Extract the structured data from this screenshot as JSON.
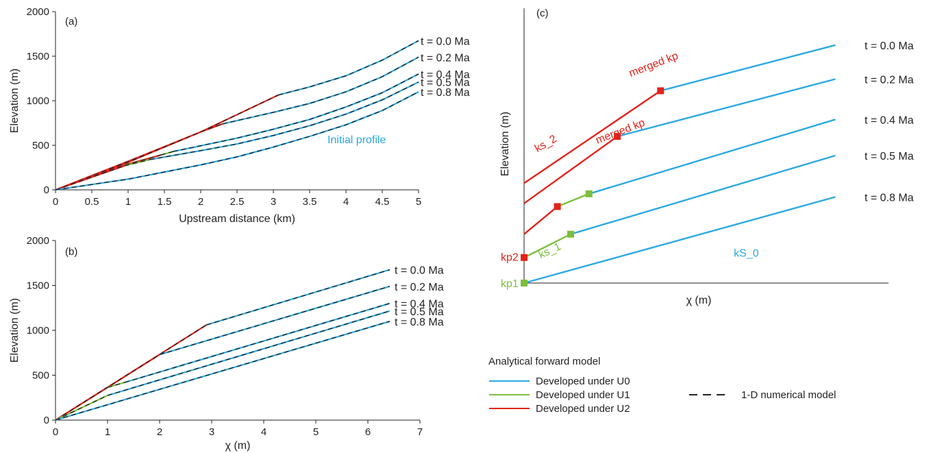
{
  "colors": {
    "u0": "#2ba9e1",
    "u1": "#7cbf3d",
    "u2": "#e2231a",
    "numerical": "#231f20",
    "axis": "#231f20"
  },
  "chart_data": [
    {
      "panel": "(a)",
      "type": "line",
      "xlabel": "Upstream distance (km)",
      "ylabel": "Elevation (m)",
      "xlim": [
        0,
        5
      ],
      "ylim": [
        0,
        2000
      ],
      "xticks": [
        "0",
        "0.5",
        "1",
        "1.5",
        "2",
        "2.5",
        "3",
        "3.5",
        "4",
        "4.5",
        "5"
      ],
      "yticks": [
        "0",
        "500",
        "1000",
        "1500",
        "2000"
      ],
      "grid": false,
      "annotation": "Initial profile",
      "series": [
        {
          "name": "t = 0.0 Ma",
          "segments": [
            {
              "under": "U2",
              "points": [
                [
                  0,
                  0
                ],
                [
                  1.0,
                  320
                ],
                [
                  2.0,
                  650
                ],
                [
                  3.07,
                  1065
                ]
              ]
            },
            {
              "under": "U0",
              "points": [
                [
                  3.07,
                  1065
                ],
                [
                  3.5,
                  1155
                ],
                [
                  4.0,
                  1280
                ],
                [
                  4.5,
                  1455
                ],
                [
                  5.0,
                  1675
                ]
              ]
            }
          ]
        },
        {
          "name": "t = 0.2 Ma",
          "segments": [
            {
              "under": "U2",
              "points": [
                [
                  0,
                  0
                ],
                [
                  1.0,
                  310
                ],
                [
                  2.0,
                  650
                ],
                [
                  2.3,
                  740
                ]
              ]
            },
            {
              "under": "U0",
              "points": [
                [
                  2.3,
                  740
                ],
                [
                  3.0,
                  870
                ],
                [
                  3.5,
                  970
                ],
                [
                  4.0,
                  1100
                ],
                [
                  4.5,
                  1270
                ],
                [
                  5.0,
                  1490
                ]
              ]
            }
          ]
        },
        {
          "name": "t = 0.4 Ma",
          "segments": [
            {
              "under": "U2",
              "points": [
                [
                  0,
                  0
                ],
                [
                  1.0,
                  290
                ],
                [
                  1.45,
                  390
                ]
              ]
            },
            {
              "under": "U1",
              "points": [
                [
                  1.45,
                  390
                ],
                [
                  1.62,
                  430
                ]
              ]
            },
            {
              "under": "U0",
              "points": [
                [
                  1.62,
                  430
                ],
                [
                  2.5,
                  580
                ],
                [
                  3.0,
                  680
                ],
                [
                  3.5,
                  790
                ],
                [
                  4.0,
                  930
                ],
                [
                  4.5,
                  1090
                ],
                [
                  5.0,
                  1300
                ]
              ]
            }
          ]
        },
        {
          "name": "t = 0.5 Ma",
          "segments": [
            {
              "under": "U2",
              "points": [
                [
                  0,
                  0
                ],
                [
                  0.95,
                  270
                ]
              ]
            },
            {
              "under": "U1",
              "points": [
                [
                  0.95,
                  270
                ],
                [
                  1.3,
                  340
                ]
              ]
            },
            {
              "under": "U0",
              "points": [
                [
                  1.3,
                  340
                ],
                [
                  2.0,
                  440
                ],
                [
                  2.5,
                  515
                ],
                [
                  3.0,
                  610
                ],
                [
                  3.5,
                  720
                ],
                [
                  4.0,
                  850
                ],
                [
                  4.5,
                  1010
                ],
                [
                  5.0,
                  1210
                ]
              ]
            }
          ]
        },
        {
          "name": "t = 0.8 Ma",
          "segments": [
            {
              "under": "U0",
              "points": [
                [
                  0,
                  0
                ],
                [
                  0.5,
                  60
                ],
                [
                  1.0,
                  120
                ],
                [
                  1.5,
                  200
                ],
                [
                  2.0,
                  280
                ],
                [
                  2.5,
                  370
                ],
                [
                  3.0,
                  480
                ],
                [
                  3.5,
                  600
                ],
                [
                  4.0,
                  730
                ],
                [
                  4.5,
                  890
                ],
                [
                  5.0,
                  1100
                ]
              ]
            }
          ]
        }
      ]
    },
    {
      "panel": "(b)",
      "type": "line",
      "xlabel": "χ (m)",
      "ylabel": "Elevation (m)",
      "xlim": [
        0,
        7
      ],
      "ylim": [
        0,
        2000
      ],
      "xticks": [
        "0",
        "1",
        "2",
        "3",
        "4",
        "5",
        "6",
        "7"
      ],
      "yticks": [
        "0",
        "500",
        "1000",
        "1500",
        "2000"
      ],
      "grid": false,
      "series": [
        {
          "name": "t = 0.0 Ma",
          "segments": [
            {
              "under": "U2",
              "points": [
                [
                  0,
                  0
                ],
                [
                  2.9,
                  1060
                ]
              ]
            },
            {
              "under": "U0",
              "points": [
                [
                  2.9,
                  1060
                ],
                [
                  6.42,
                  1675
                ]
              ]
            }
          ]
        },
        {
          "name": "t = 0.2 Ma",
          "segments": [
            {
              "under": "U2",
              "points": [
                [
                  0,
                  0
                ],
                [
                  2.0,
                  730
                ]
              ]
            },
            {
              "under": "U0",
              "points": [
                [
                  2.0,
                  730
                ],
                [
                  6.42,
                  1490
                ]
              ]
            }
          ]
        },
        {
          "name": "t = 0.4 Ma",
          "segments": [
            {
              "under": "U2",
              "points": [
                [
                  0,
                  0
                ],
                [
                  1.0,
                  365
                ]
              ]
            },
            {
              "under": "U1",
              "points": [
                [
                  1.0,
                  365
                ],
                [
                  1.33,
                  420
                ]
              ]
            },
            {
              "under": "U0",
              "points": [
                [
                  1.33,
                  420
                ],
                [
                  6.42,
                  1300
                ]
              ]
            }
          ]
        },
        {
          "name": "t = 0.5 Ma",
          "segments": [
            {
              "under": "U1",
              "points": [
                [
                  0,
                  0
                ],
                [
                  1.0,
                  275
                ]
              ]
            },
            {
              "under": "U0",
              "points": [
                [
                  1.0,
                  275
                ],
                [
                  6.42,
                  1215
                ]
              ]
            }
          ]
        },
        {
          "name": "t = 0.8 Ma",
          "segments": [
            {
              "under": "U0",
              "points": [
                [
                  0,
                  0
                ],
                [
                  6.42,
                  1100
                ]
              ]
            }
          ]
        }
      ]
    },
    {
      "panel": "(c)",
      "type": "line",
      "xlabel": "χ (m)",
      "ylabel": "Elevation (m)",
      "xlim": [
        0,
        10
      ],
      "ylim": [
        0,
        10
      ],
      "xticks": [],
      "yticks": [],
      "grid": false,
      "series": [
        {
          "name": "t = 0.0 Ma",
          "segments": [
            {
              "under": "U2",
              "points": [
                [
                  0,
                  4.7
                ],
                [
                  4.1,
                  9.05
                ]
              ]
            },
            {
              "under": "U0",
              "points": [
                [
                  4.1,
                  9.05
                ],
                [
                  9.35,
                  11.2
                ]
              ]
            }
          ]
        },
        {
          "name": "t = 0.2 Ma",
          "segments": [
            {
              "under": "U2",
              "points": [
                [
                  0,
                  3.75
                ],
                [
                  2.8,
                  6.9
                ]
              ]
            },
            {
              "under": "U0",
              "points": [
                [
                  2.8,
                  6.9
                ],
                [
                  9.35,
                  9.6
                ]
              ]
            }
          ]
        },
        {
          "name": "t = 0.4 Ma",
          "segments": [
            {
              "under": "U2",
              "points": [
                [
                  0,
                  2.3
                ],
                [
                  1.0,
                  3.6
                ]
              ]
            },
            {
              "under": "U1",
              "points": [
                [
                  1.0,
                  3.6
                ],
                [
                  1.95,
                  4.2
                ]
              ]
            },
            {
              "under": "U0",
              "points": [
                [
                  1.95,
                  4.2
                ],
                [
                  9.35,
                  7.7
                ]
              ]
            }
          ]
        },
        {
          "name": "t = 0.5 Ma",
          "segments": [
            {
              "under": "U1",
              "points": [
                [
                  0,
                  1.2
                ],
                [
                  1.4,
                  2.3
                ]
              ]
            },
            {
              "under": "U0",
              "points": [
                [
                  1.4,
                  2.3
                ],
                [
                  9.35,
                  6.0
                ]
              ]
            }
          ]
        },
        {
          "name": "t = 0.8 Ma",
          "segments": [
            {
              "under": "U0",
              "points": [
                [
                  0,
                  0
                ],
                [
                  9.35,
                  4.05
                ]
              ]
            }
          ]
        }
      ],
      "knickpoints": [
        {
          "under": "U2",
          "x": 4.1,
          "y": 9.05
        },
        {
          "under": "U2",
          "x": 2.8,
          "y": 6.9
        },
        {
          "under": "U2",
          "x": 1.0,
          "y": 3.6
        },
        {
          "under": "U2",
          "x": 0,
          "y": 1.2
        },
        {
          "under": "U1",
          "x": 1.95,
          "y": 4.2
        },
        {
          "under": "U1",
          "x": 1.4,
          "y": 2.3
        },
        {
          "under": "U1",
          "x": 0,
          "y": 0
        }
      ],
      "annotations": [
        {
          "text": "merged kp",
          "under": "U2",
          "x": 3.2,
          "y": 9.7,
          "angle": -21
        },
        {
          "text": "merged kp",
          "under": "U2",
          "x": 2.2,
          "y": 6.55,
          "angle": -21
        },
        {
          "text": "ks_2",
          "under": "U2",
          "x": 0.4,
          "y": 6.15,
          "angle": -30
        },
        {
          "text": "kp2",
          "under": "U2",
          "x": -0.7,
          "y": 1.05,
          "angle": 0
        },
        {
          "text": "ks_1",
          "under": "U1",
          "x": 0.5,
          "y": 1.15,
          "angle": -25
        },
        {
          "text": "kp1",
          "under": "U1",
          "x": -0.7,
          "y": -0.2,
          "angle": 0
        },
        {
          "text": "kS_0",
          "under": "U0",
          "x": 6.3,
          "y": 1.25,
          "angle": 0
        }
      ]
    }
  ],
  "legend": {
    "title": "Analytical forward model",
    "items": [
      {
        "label": "Developed under U0",
        "under": "U0"
      },
      {
        "label": "Developed under U1",
        "under": "U1"
      },
      {
        "label": "Developed under U2",
        "under": "U2"
      }
    ],
    "numerical_label": "1-D numerical model"
  }
}
